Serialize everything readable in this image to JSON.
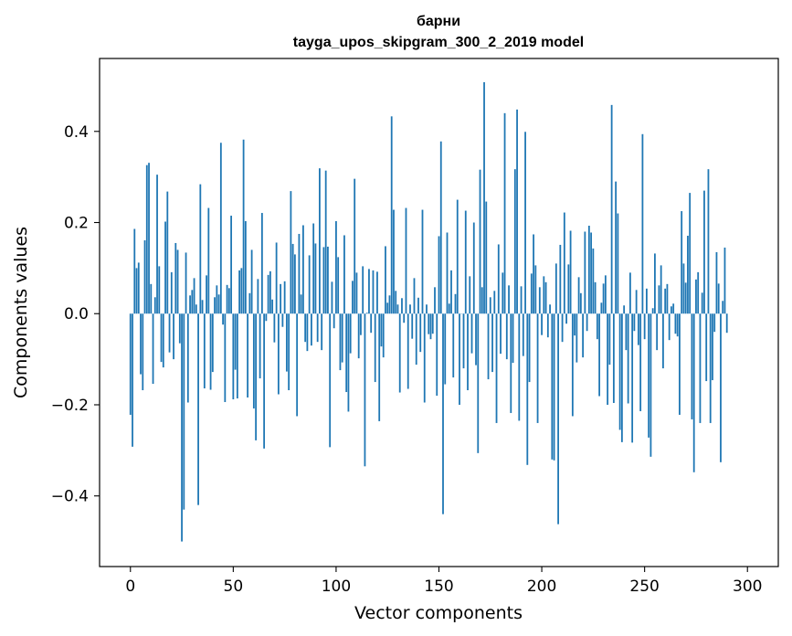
{
  "chart_data": {
    "type": "bar",
    "title_line1": "барни",
    "title_line2": "tayga_upos_skipgram_300_2_2019 model",
    "xlabel": "Vector components",
    "ylabel": "Components values",
    "xlim": [
      -15,
      315
    ],
    "ylim": [
      -0.555,
      0.56
    ],
    "xticks": [
      0,
      50,
      100,
      150,
      200,
      250,
      300
    ],
    "xtick_labels": [
      "0",
      "50",
      "100",
      "150",
      "200",
      "250",
      "300"
    ],
    "yticks": [
      -0.4,
      -0.2,
      0.0,
      0.2,
      0.4
    ],
    "ytick_labels": [
      "−0.4",
      "−0.2",
      "0.0",
      "0.2",
      "0.4"
    ],
    "bar_color": "#1f77b4",
    "grid": false,
    "legend": "none",
    "values": [
      -0.222,
      -0.292,
      0.186,
      0.1,
      0.112,
      -0.133,
      -0.168,
      0.161,
      0.326,
      0.331,
      0.065,
      -0.154,
      0.036,
      0.305,
      0.104,
      -0.106,
      -0.118,
      0.202,
      0.268,
      -0.085,
      0.091,
      -0.1,
      0.155,
      0.14,
      -0.065,
      -0.5,
      -0.43,
      0.134,
      -0.195,
      0.04,
      0.052,
      0.078,
      0.02,
      -0.42,
      0.284,
      0.03,
      -0.164,
      0.084,
      0.232,
      -0.167,
      -0.128,
      0.036,
      0.062,
      0.042,
      0.375,
      -0.024,
      -0.194,
      0.063,
      0.056,
      0.215,
      -0.188,
      -0.123,
      -0.186,
      0.095,
      0.1,
      0.382,
      0.203,
      -0.184,
      0.045,
      0.14,
      -0.208,
      -0.278,
      0.076,
      -0.142,
      0.221,
      -0.296,
      -0.016,
      0.085,
      0.093,
      0.031,
      -0.063,
      0.156,
      -0.177,
      0.065,
      -0.029,
      0.071,
      -0.127,
      -0.168,
      0.269,
      0.153,
      0.13,
      -0.225,
      0.175,
      0.042,
      0.194,
      -0.062,
      -0.082,
      0.128,
      -0.07,
      0.198,
      0.154,
      -0.062,
      0.319,
      -0.08,
      0.146,
      0.314,
      0.147,
      -0.293,
      0.07,
      -0.032,
      0.203,
      0.124,
      -0.124,
      -0.107,
      0.172,
      -0.172,
      -0.215,
      -0.087,
      0.072,
      0.296,
      0.09,
      -0.098,
      -0.047,
      0.104,
      -0.335,
      0.002,
      0.098,
      -0.042,
      0.095,
      -0.15,
      0.092,
      -0.236,
      -0.072,
      -0.096,
      0.148,
      0.024,
      0.04,
      0.433,
      0.228,
      0.05,
      0.02,
      -0.173,
      0.034,
      -0.02,
      0.232,
      -0.165,
      0.02,
      -0.055,
      0.078,
      -0.112,
      0.035,
      -0.084,
      0.228,
      -0.195,
      0.02,
      -0.045,
      -0.056,
      -0.044,
      0.058,
      -0.18,
      0.17,
      0.378,
      -0.44,
      -0.155,
      0.178,
      0.022,
      0.095,
      -0.14,
      0.043,
      0.25,
      -0.2,
      0.0,
      -0.12,
      0.226,
      -0.168,
      0.082,
      -0.087,
      0.2,
      -0.113,
      -0.306,
      0.316,
      0.058,
      0.508,
      0.246,
      -0.144,
      0.036,
      -0.128,
      0.05,
      -0.24,
      0.152,
      -0.088,
      0.09,
      0.44,
      -0.1,
      0.062,
      -0.218,
      -0.108,
      0.317,
      0.448,
      -0.235,
      0.06,
      -0.093,
      0.399,
      -0.332,
      -0.15,
      0.088,
      0.174,
      0.106,
      -0.24,
      0.058,
      -0.047,
      0.082,
      0.069,
      -0.052,
      0.02,
      -0.32,
      -0.322,
      0.11,
      -0.462,
      0.151,
      -0.062,
      0.222,
      -0.022,
      0.108,
      0.182,
      -0.225,
      -0.048,
      -0.107,
      0.08,
      0.045,
      -0.096,
      0.18,
      -0.038,
      0.193,
      0.178,
      0.143,
      0.069,
      -0.056,
      -0.181,
      0.024,
      0.066,
      0.084,
      -0.2,
      -0.112,
      0.458,
      -0.196,
      0.29,
      0.22,
      -0.255,
      -0.282,
      0.018,
      -0.08,
      -0.197,
      0.09,
      -0.283,
      -0.038,
      0.052,
      -0.069,
      -0.214,
      0.394,
      -0.056,
      0.055,
      -0.272,
      -0.314,
      0.012,
      0.132,
      -0.08,
      0.062,
      0.106,
      -0.12,
      0.055,
      0.065,
      -0.058,
      0.016,
      0.022,
      -0.044,
      -0.05,
      -0.222,
      0.225,
      0.11,
      0.068,
      0.171,
      0.265,
      -0.232,
      -0.348,
      0.075,
      0.091,
      -0.24,
      0.046,
      0.27,
      -0.148,
      0.317,
      -0.24,
      -0.146,
      -0.04,
      0.135,
      0.066,
      -0.326,
      0.028,
      0.145,
      -0.042
    ]
  }
}
